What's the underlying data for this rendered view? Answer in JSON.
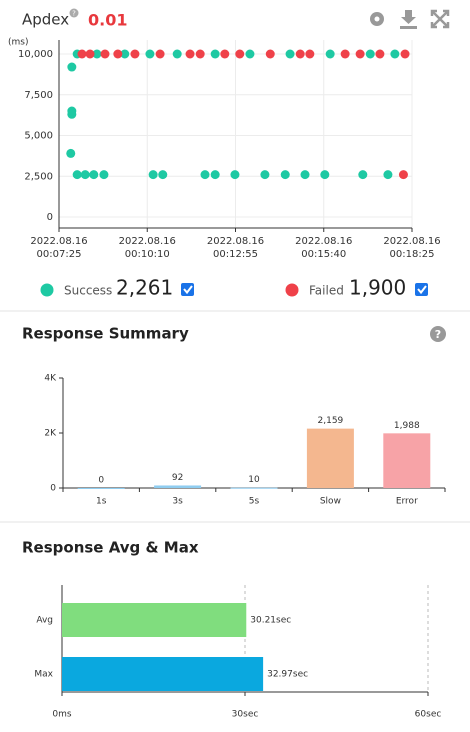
{
  "header": {
    "title": "Apdex",
    "help": "?",
    "score": "0.01"
  },
  "legend_totals": [
    "2,261",
    "1,900"
  ],
  "sections": [
    "Response Summary",
    "Response Avg & Max"
  ],
  "chart_data": [
    {
      "type": "scatter",
      "ylabel": "(ms)",
      "xlim": [
        "2022.08.16 00:07:25",
        "2022.08.16 00:18:25"
      ],
      "xticks": [
        "2022.08.16 00:07:25",
        "2022.08.16 00:10:10",
        "2022.08.16 00:12:55",
        "2022.08.16 00:15:40",
        "2022.08.16 00:18:25"
      ],
      "ylim": [
        0,
        10000
      ],
      "yticks": [
        0,
        {
          "value": 2500,
          "label": "2,500"
        },
        {
          "value": 5000,
          "label": "5,000"
        },
        {
          "value": 7500,
          "label": "7,500"
        },
        {
          "value": 10000,
          "label": "10,000"
        }
      ],
      "grid": true,
      "series": [
        {
          "name": "Success",
          "color": "#1ec9a3",
          "x": [
            "2022.08.16 00:07:49",
            "2022.08.16 00:07:49",
            "2022.08.16 00:07:49",
            "2022.08.16 00:07:47",
            "2022.08.16 00:07:59",
            "2022.08.16 00:08:14",
            "2022.08.16 00:08:30",
            "2022.08.16 00:08:49",
            "2022.08.16 00:10:21",
            "2022.08.16 00:10:39",
            "2022.08.16 00:11:58",
            "2022.08.16 00:12:17",
            "2022.08.16 00:12:54",
            "2022.08.16 00:13:50",
            "2022.08.16 00:14:28",
            "2022.08.16 00:15:05",
            "2022.08.16 00:15:42",
            "2022.08.16 00:16:53",
            "2022.08.16 00:17:40",
            "2022.08.16 00:07:59",
            "2022.08.16 00:08:36",
            "2022.08.16 00:09:28",
            "2022.08.16 00:10:15",
            "2022.08.16 00:11:06",
            "2022.08.16 00:12:17",
            "2022.08.16 00:13:22",
            "2022.08.16 00:14:37",
            "2022.08.16 00:15:52",
            "2022.08.16 00:17:07",
            "2022.08.16 00:17:53"
          ],
          "values": [
            9200,
            6500,
            6300,
            3900,
            2600,
            2600,
            2600,
            2600,
            2600,
            2600,
            2600,
            2600,
            2600,
            2600,
            2600,
            2600,
            2600,
            2600,
            2600,
            10000,
            10000,
            10000,
            10000,
            10000,
            10000,
            10000,
            10000,
            10000,
            10000,
            10000
          ]
        },
        {
          "name": "Failed",
          "color": "#ef4149",
          "x": [
            "2022.08.16 00:08:08",
            "2022.08.16 00:08:23",
            "2022.08.16 00:08:51",
            "2022.08.16 00:09:15",
            "2022.08.16 00:09:47",
            "2022.08.16 00:10:34",
            "2022.08.16 00:11:30",
            "2022.08.16 00:11:49",
            "2022.08.16 00:12:35",
            "2022.08.16 00:13:03",
            "2022.08.16 00:14:00",
            "2022.08.16 00:14:56",
            "2022.08.16 00:15:14",
            "2022.08.16 00:16:20",
            "2022.08.16 00:16:48",
            "2022.08.16 00:17:25",
            "2022.08.16 00:18:12",
            "2022.08.16 00:18:09"
          ],
          "values": [
            10000,
            10000,
            10000,
            10000,
            10000,
            10000,
            10000,
            10000,
            10000,
            10000,
            10000,
            10000,
            10000,
            10000,
            10000,
            10000,
            10000,
            2600
          ]
        }
      ]
    },
    {
      "type": "bar",
      "categories": [
        "1s",
        "3s",
        "5s",
        "Slow",
        "Error"
      ],
      "values": [
        0,
        92,
        10,
        2159,
        1988
      ],
      "value_labels": [
        "0",
        "92",
        "10",
        "2,159",
        "1,988"
      ],
      "colors": [
        "#8fcdf0",
        "#8fcdf0",
        "#8fcdf0",
        "#f4b78f",
        "#f7a3a7"
      ],
      "ylim": [
        0,
        4000
      ],
      "yticks": [
        0,
        {
          "value": 2000,
          "label": "2K"
        },
        {
          "value": 4000,
          "label": "4K"
        }
      ]
    },
    {
      "type": "hbar",
      "categories": [
        "Avg",
        "Max"
      ],
      "values": [
        30.21,
        32.97
      ],
      "value_labels": [
        "30.21sec",
        "32.97sec"
      ],
      "colors": [
        "#80dd7e",
        "#0aa8df"
      ],
      "xlim": [
        0,
        60
      ],
      "xticks": [
        {
          "value": 0,
          "label": "0ms"
        },
        {
          "value": 30,
          "label": "30sec"
        },
        {
          "value": 60,
          "label": "60sec"
        }
      ]
    }
  ]
}
